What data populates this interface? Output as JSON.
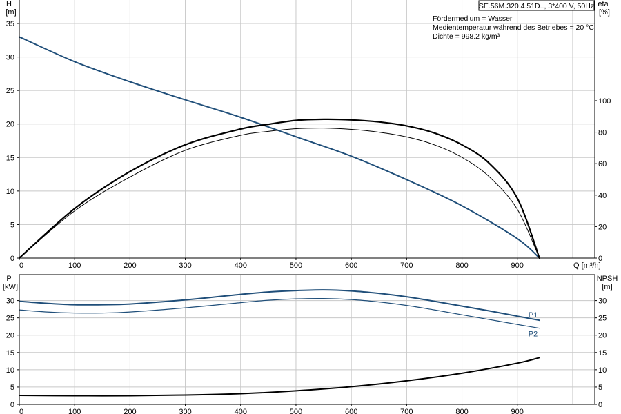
{
  "header": {
    "product_label": "SE.56M.320.4.51D.., 3*400 V, 50Hz",
    "medium": "Fördermedium = Wasser",
    "temperature": "Medientemperatur während des Betriebes = 20 °C",
    "density": "Dichte = 998.2 kg/m³"
  },
  "colors": {
    "head_curve": "#1f4e79",
    "efficiency_curve": "#000000",
    "power_curve": "#1f4e79",
    "npsh_curve": "#000000",
    "grid": "#c8c8c8"
  },
  "chart_data": [
    {
      "type": "line",
      "xlabel": "Q [m³/h]",
      "ylabel_left": "H [m]",
      "ylabel_right": "eta [%]",
      "x_ticks": [
        0,
        100,
        200,
        300,
        400,
        500,
        600,
        700,
        800,
        900
      ],
      "y_ticks_left": [
        0,
        5,
        10,
        15,
        20,
        25,
        30,
        35
      ],
      "y_ticks_right": [
        0,
        20,
        40,
        60,
        80,
        100
      ],
      "xlim": [
        0,
        1040
      ],
      "ylim_left": [
        0,
        38.5
      ],
      "ylim_right": [
        0,
        164
      ],
      "grid": true,
      "series": [
        {
          "name": "",
          "kind": "head",
          "axis": "left",
          "x": [
            0,
            100,
            200,
            300,
            400,
            500,
            600,
            700,
            800,
            900,
            940
          ],
          "y": [
            33,
            29.3,
            26.3,
            23.6,
            21.0,
            18.1,
            15.2,
            11.7,
            7.8,
            2.9,
            0
          ]
        },
        {
          "name": "",
          "kind": "efficiency",
          "axis": "right",
          "x": [
            0,
            100,
            200,
            300,
            400,
            450,
            500,
            550,
            600,
            650,
            700,
            750,
            800,
            850,
            900,
            940
          ],
          "y": [
            0,
            30,
            51.5,
            68.5,
            78,
            80.5,
            82.2,
            82.6,
            81.8,
            80,
            77,
            72,
            64,
            51.5,
            31,
            0
          ]
        },
        {
          "name": "",
          "kind": "efficiency",
          "axis": "right",
          "x": [
            0,
            100,
            200,
            300,
            400,
            450,
            500,
            550,
            600,
            650,
            700,
            750,
            800,
            850,
            900,
            940
          ],
          "y": [
            0,
            31.5,
            55,
            72,
            82,
            85,
            87.5,
            88.2,
            87.8,
            86.5,
            84,
            79.5,
            72,
            60,
            38,
            0
          ]
        }
      ]
    },
    {
      "type": "line",
      "xlabel": "",
      "ylabel_left": "P [kW]",
      "ylabel_right": "NPSH [m]",
      "x_ticks": [
        0,
        100,
        200,
        300,
        400,
        500,
        600,
        700,
        800,
        900
      ],
      "y_ticks_left": [
        0,
        5,
        10,
        15,
        20,
        25,
        30
      ],
      "y_ticks_right": [
        0,
        5,
        10,
        15,
        20,
        25,
        30
      ],
      "xlim": [
        0,
        1040
      ],
      "ylim_left": [
        0,
        37.5
      ],
      "ylim_right": [
        0,
        37.5
      ],
      "grid": true,
      "series": [
        {
          "name": "P1",
          "kind": "power",
          "axis": "left",
          "x": [
            0,
            50,
            100,
            150,
            200,
            300,
            400,
            450,
            500,
            550,
            600,
            650,
            700,
            750,
            800,
            850,
            900,
            940
          ],
          "y": [
            29.8,
            29.2,
            28.8,
            28.8,
            29.0,
            30.2,
            31.8,
            32.5,
            32.9,
            33.1,
            32.8,
            32.1,
            31.1,
            29.8,
            28.4,
            27.0,
            25.5,
            24.3
          ]
        },
        {
          "name": "P2",
          "kind": "power",
          "axis": "left",
          "x": [
            0,
            50,
            100,
            150,
            200,
            300,
            400,
            450,
            500,
            550,
            600,
            650,
            700,
            750,
            800,
            850,
            900,
            940
          ],
          "y": [
            27.3,
            26.7,
            26.4,
            26.4,
            26.7,
            27.9,
            29.4,
            30.1,
            30.5,
            30.6,
            30.3,
            29.6,
            28.6,
            27.3,
            25.9,
            24.5,
            23.1,
            22.0
          ]
        },
        {
          "name": "",
          "kind": "npsh",
          "axis": "right",
          "x": [
            0,
            100,
            200,
            300,
            400,
            500,
            600,
            700,
            800,
            900,
            940
          ],
          "y": [
            2.6,
            2.5,
            2.5,
            2.7,
            3.1,
            3.9,
            5.1,
            6.8,
            9.0,
            11.9,
            13.5
          ]
        }
      ]
    }
  ]
}
